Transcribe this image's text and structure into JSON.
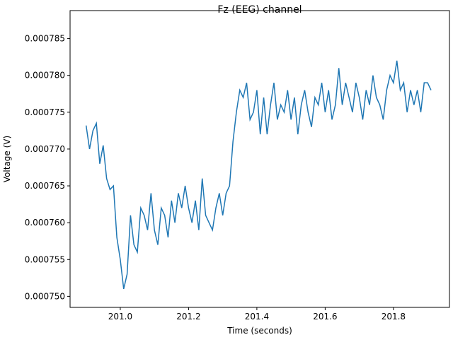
{
  "chart_data": {
    "type": "line",
    "title": "Fz (EEG) channel",
    "xlabel": "Time (seconds)",
    "ylabel": "Voltage (V)",
    "xlim": [
      200.853,
      201.964
    ],
    "ylim": [
      0.0007485,
      0.0007888
    ],
    "xticks": [
      {
        "value": 201.0,
        "label": "201.0"
      },
      {
        "value": 201.2,
        "label": "201.2"
      },
      {
        "value": 201.4,
        "label": "201.4"
      },
      {
        "value": 201.6,
        "label": "201.6"
      },
      {
        "value": 201.8,
        "label": "201.8"
      }
    ],
    "yticks": [
      {
        "value": 0.00075,
        "label": "0.000750"
      },
      {
        "value": 0.000755,
        "label": "0.000755"
      },
      {
        "value": 0.00076,
        "label": "0.000760"
      },
      {
        "value": 0.000765,
        "label": "0.000765"
      },
      {
        "value": 0.00077,
        "label": "0.000770"
      },
      {
        "value": 0.000775,
        "label": "0.000775"
      },
      {
        "value": 0.00078,
        "label": "0.000780"
      },
      {
        "value": 0.000785,
        "label": "0.000785"
      }
    ],
    "x": [
      200.9,
      200.91,
      200.92,
      200.93,
      200.94,
      200.95,
      200.96,
      200.97,
      200.98,
      200.99,
      201.0,
      201.01,
      201.02,
      201.03,
      201.04,
      201.05,
      201.06,
      201.07,
      201.08,
      201.09,
      201.1,
      201.11,
      201.12,
      201.13,
      201.14,
      201.15,
      201.16,
      201.17,
      201.18,
      201.19,
      201.2,
      201.21,
      201.22,
      201.23,
      201.24,
      201.25,
      201.26,
      201.27,
      201.28,
      201.29,
      201.3,
      201.31,
      201.32,
      201.33,
      201.34,
      201.35,
      201.36,
      201.37,
      201.38,
      201.39,
      201.4,
      201.41,
      201.42,
      201.43,
      201.44,
      201.45,
      201.46,
      201.47,
      201.48,
      201.49,
      201.5,
      201.51,
      201.52,
      201.53,
      201.54,
      201.55,
      201.56,
      201.57,
      201.58,
      201.59,
      201.6,
      201.61,
      201.62,
      201.63,
      201.64,
      201.65,
      201.66,
      201.67,
      201.68,
      201.69,
      201.7,
      201.71,
      201.72,
      201.73,
      201.74,
      201.75,
      201.76,
      201.77,
      201.78,
      201.79,
      201.8,
      201.81,
      201.82,
      201.83,
      201.84,
      201.85,
      201.86,
      201.87,
      201.88,
      201.89,
      201.9,
      201.91
    ],
    "series": [
      {
        "color": "#1f77b4",
        "values": [
          0.0007732,
          0.00077,
          0.0007725,
          0.0007735,
          0.000768,
          0.0007705,
          0.000766,
          0.0007645,
          0.000765,
          0.000758,
          0.000755,
          0.000751,
          0.000753,
          0.000761,
          0.000757,
          0.000756,
          0.000762,
          0.000761,
          0.000759,
          0.000764,
          0.000759,
          0.000757,
          0.000762,
          0.000761,
          0.000758,
          0.000763,
          0.00076,
          0.000764,
          0.000762,
          0.000765,
          0.000762,
          0.00076,
          0.000763,
          0.000759,
          0.000766,
          0.000761,
          0.00076,
          0.000759,
          0.000762,
          0.000764,
          0.000761,
          0.000764,
          0.000765,
          0.000771,
          0.000775,
          0.000778,
          0.000777,
          0.000779,
          0.000774,
          0.000775,
          0.000778,
          0.000772,
          0.000777,
          0.000772,
          0.000776,
          0.000779,
          0.000774,
          0.000776,
          0.000775,
          0.000778,
          0.000774,
          0.000777,
          0.000772,
          0.000776,
          0.000778,
          0.000775,
          0.000773,
          0.000777,
          0.000776,
          0.000779,
          0.000775,
          0.000778,
          0.000774,
          0.000776,
          0.000781,
          0.000776,
          0.000779,
          0.000777,
          0.000775,
          0.000779,
          0.000777,
          0.000774,
          0.000778,
          0.000776,
          0.00078,
          0.000777,
          0.000776,
          0.000774,
          0.000778,
          0.00078,
          0.000779,
          0.000782,
          0.000778,
          0.000779,
          0.000775,
          0.000778,
          0.000776,
          0.000778,
          0.000775,
          0.000779,
          0.000779,
          0.000778
        ]
      }
    ]
  }
}
